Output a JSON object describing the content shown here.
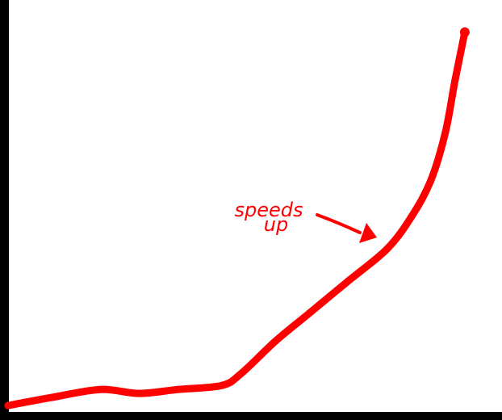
{
  "chart_data": {
    "type": "line",
    "title": "",
    "xlabel": "",
    "ylabel": "",
    "xlim": [
      0,
      10
    ],
    "ylim": [
      0,
      10
    ],
    "grid": false,
    "legend": "none",
    "series": [
      {
        "x": [
          0,
          0.9,
          1.9,
          2.7,
          3.5,
          4.4,
          4.8,
          5.5,
          6.2,
          7.0,
          7.8,
          8.3,
          8.7,
          9.0,
          9.2,
          9.4
        ],
        "y": [
          0.2,
          0.4,
          0.6,
          0.5,
          0.6,
          0.7,
          1.0,
          1.8,
          2.5,
          3.3,
          4.1,
          4.9,
          5.8,
          7.0,
          8.3,
          9.5
        ],
        "color": "#ff0000"
      }
    ],
    "annotations": [
      {
        "lines": [
          "speeds",
          "up"
        ],
        "color": "#ff0000"
      }
    ]
  }
}
